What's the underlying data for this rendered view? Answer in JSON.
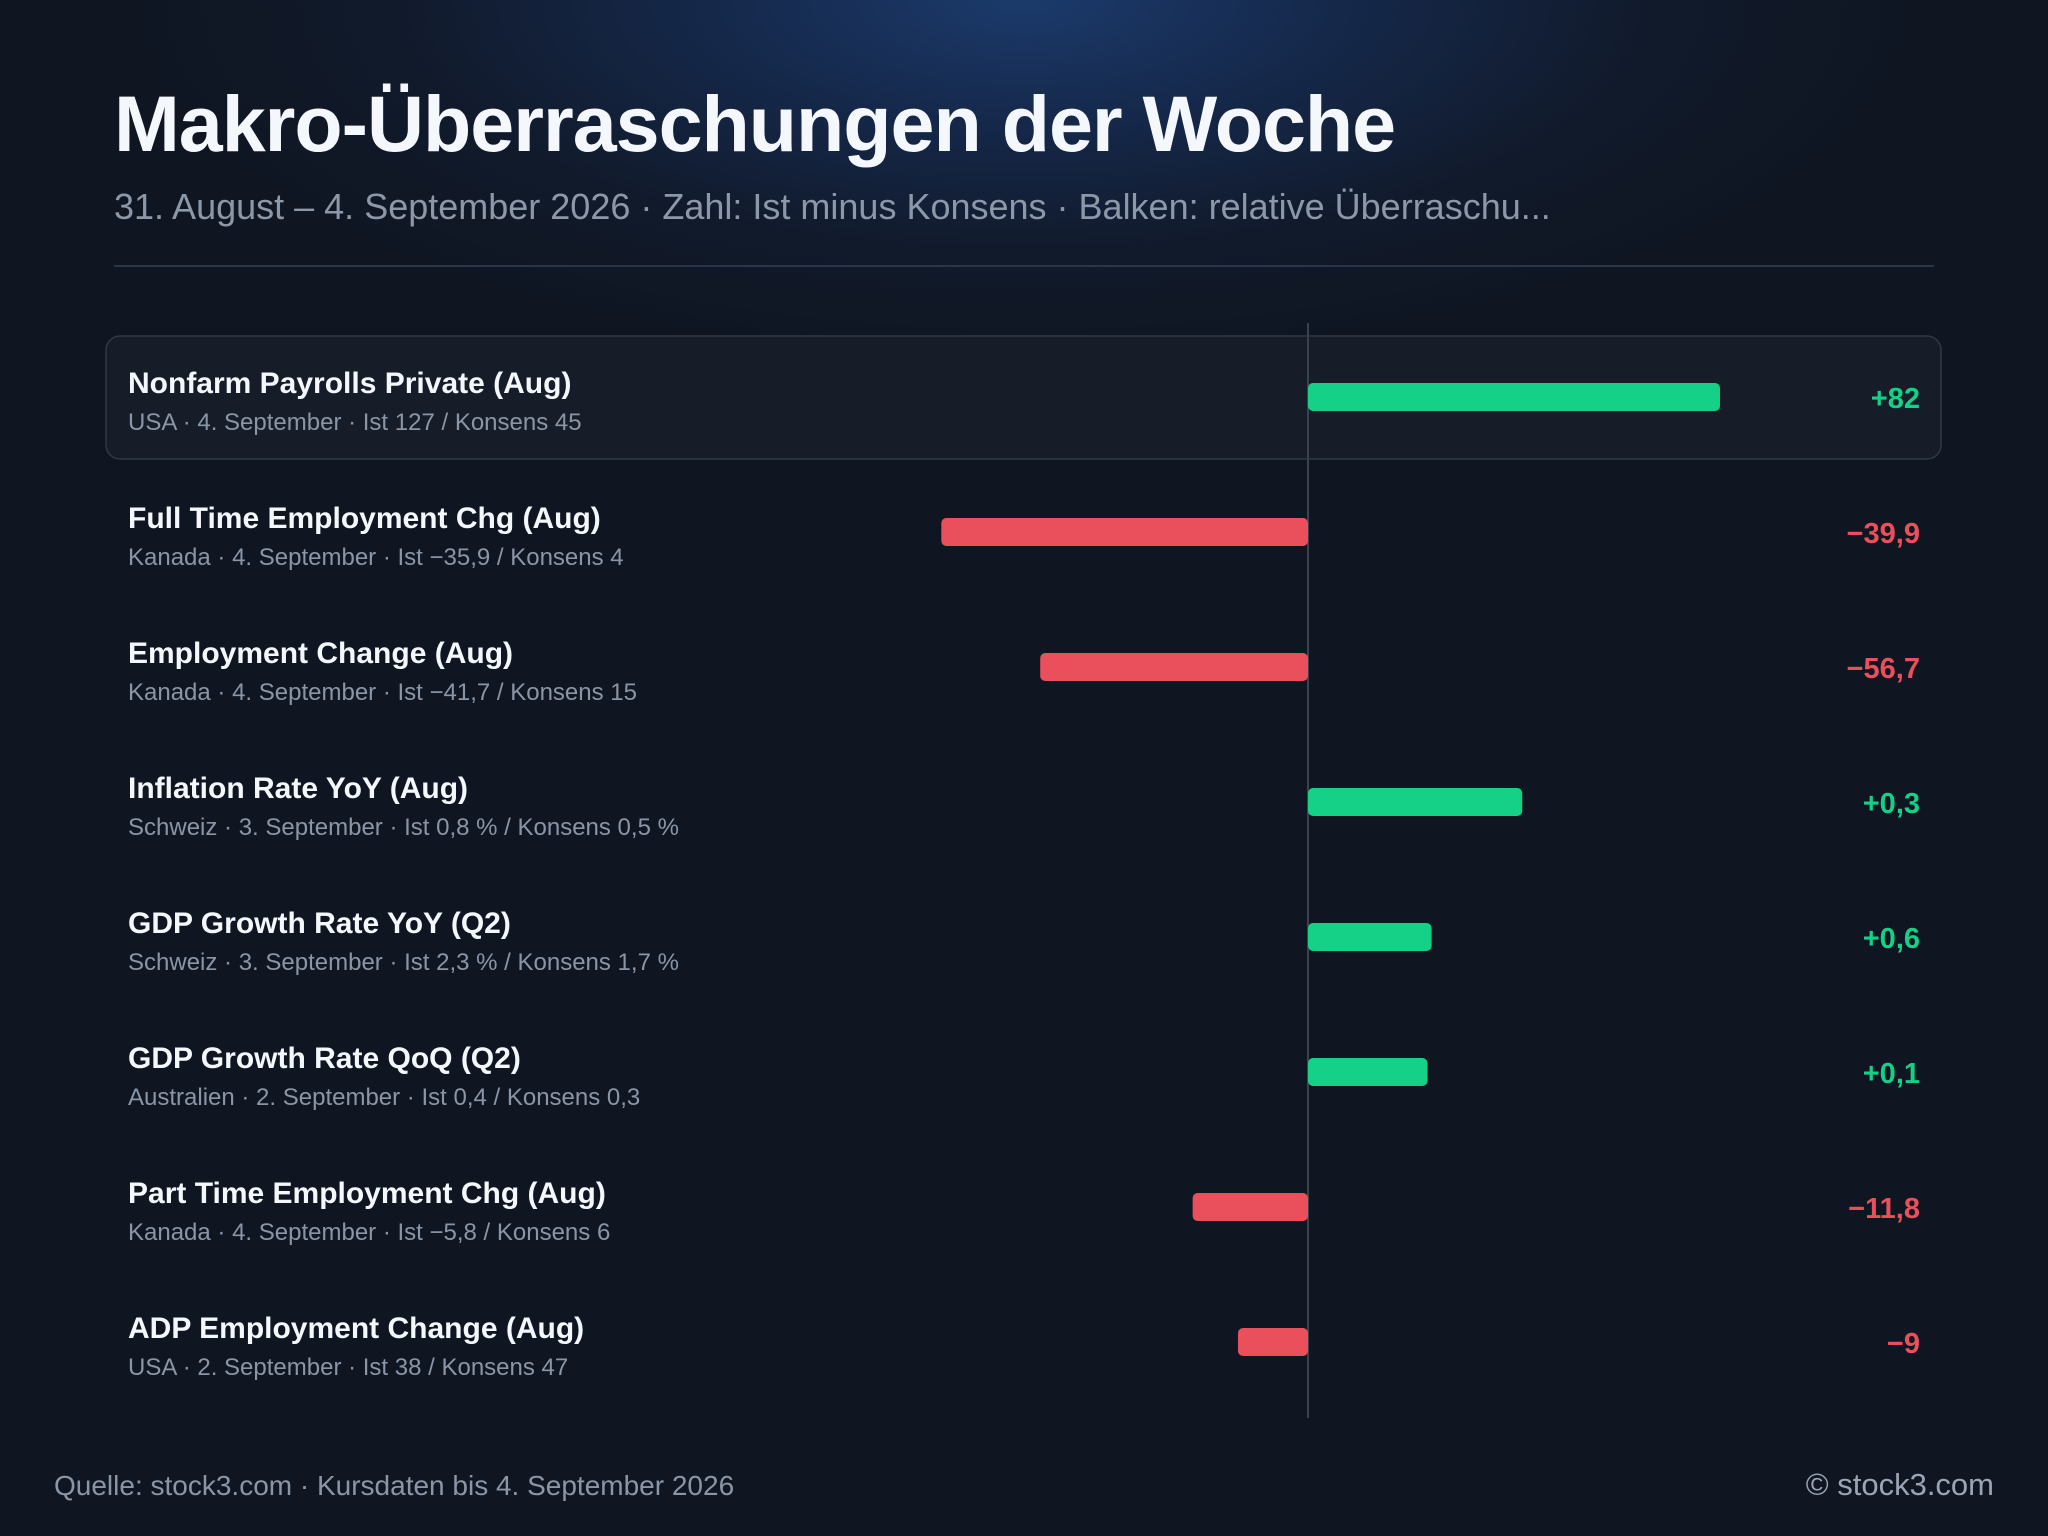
{
  "header": {
    "title": "Makro-Überraschungen der Woche",
    "subtitle": "31. August – 4. September 2026 · Zahl: Ist minus Konsens · Balken: relative Überraschu..."
  },
  "footer": {
    "source": "Quelle: stock3.com · Kursdaten bis 4. September 2026",
    "copyright": "© stock3.com"
  },
  "colors": {
    "positive": "#14d187",
    "negative": "#ea4f5c",
    "highlight_bg": "#161d28",
    "axis": "#39424f"
  },
  "chart_data": {
    "type": "bar",
    "orientation": "horizontal",
    "value_label": "Ist minus Konsens",
    "bar_label": "relative Überraschung",
    "rows": [
      {
        "name": "Nonfarm Payrolls Private (Aug)",
        "details": "USA · 4. September · Ist 127 / Konsens 45",
        "value_text": "+82",
        "surprise": 82,
        "relative": 1.0,
        "highlighted": true
      },
      {
        "name": "Full Time Employment Chg (Aug)",
        "details": "Kanada · 4. September · Ist −35,9 / Konsens 4",
        "value_text": "−39,9",
        "surprise": -39.9,
        "relative": -0.89,
        "highlighted": false
      },
      {
        "name": "Employment Change (Aug)",
        "details": "Kanada · 4. September · Ist −41,7 / Konsens 15",
        "value_text": "−56,7",
        "surprise": -56.7,
        "relative": -0.65,
        "highlighted": false
      },
      {
        "name": "Inflation Rate YoY (Aug)",
        "details": "Schweiz · 3. September · Ist 0,8 % / Konsens 0,5 %",
        "value_text": "+0,3",
        "surprise": 0.3,
        "relative": 0.52,
        "highlighted": false
      },
      {
        "name": "GDP Growth Rate YoY (Q2)",
        "details": "Schweiz · 3. September · Ist 2,3 % / Konsens 1,7 %",
        "value_text": "+0,6",
        "surprise": 0.6,
        "relative": 0.3,
        "highlighted": false
      },
      {
        "name": "GDP Growth Rate QoQ (Q2)",
        "details": "Australien · 2. September · Ist 0,4 / Konsens 0,3",
        "value_text": "+0,1",
        "surprise": 0.1,
        "relative": 0.29,
        "highlighted": false
      },
      {
        "name": "Part Time Employment Chg (Aug)",
        "details": "Kanada · 4. September · Ist −5,8 / Konsens 6",
        "value_text": "−11,8",
        "surprise": -11.8,
        "relative": -0.28,
        "highlighted": false
      },
      {
        "name": "ADP Employment Change (Aug)",
        "details": "USA · 2. September · Ist 38 / Konsens 47",
        "value_text": "−9",
        "surprise": -9,
        "relative": -0.17,
        "highlighted": false
      }
    ]
  }
}
